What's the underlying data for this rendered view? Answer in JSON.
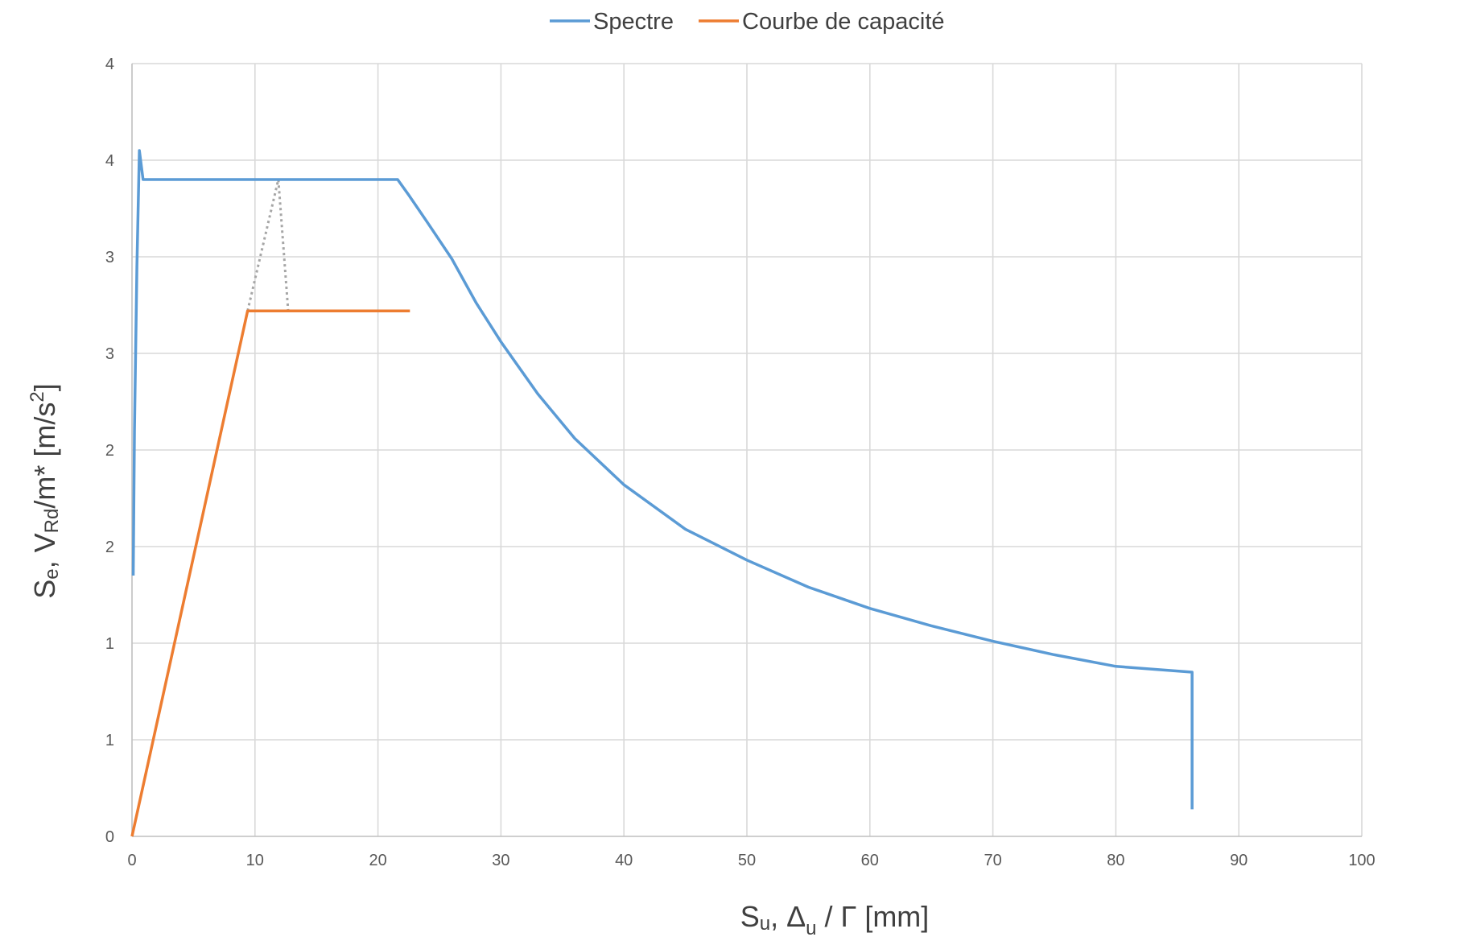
{
  "chart_data": {
    "type": "line",
    "title": "",
    "xlabel": {
      "main": "S",
      "sub": "u",
      "rest": ",  Δ",
      "sub2": "u",
      "tail": " / Γ  [mm]"
    },
    "ylabel": {
      "main": "S",
      "sub": "e",
      "mid": ",  V",
      "sub2": "Rd",
      "tail": "/m*   [m/s",
      "sup": "2",
      "end": "]"
    },
    "xlim": [
      0,
      100
    ],
    "ylim": [
      0,
      4
    ],
    "x_ticks": [
      "0",
      "10",
      "20",
      "30",
      "40",
      "50",
      "60",
      "70",
      "80",
      "90",
      "100"
    ],
    "y_tick_values": [
      0,
      0.5,
      1,
      1.5,
      2,
      2.5,
      3,
      3.5,
      4
    ],
    "y_tick_labels": [
      "0",
      "1",
      "1",
      "2",
      "2",
      "3",
      "3",
      "4",
      "4"
    ],
    "grid": true,
    "legend_position": "top-center",
    "series": [
      {
        "name": "Spectre",
        "color": "#5b9bd5",
        "x": [
          0.1,
          0.2,
          0.4,
          0.6,
          0.9,
          21.6,
          22.5,
          24,
          26,
          28,
          30,
          33,
          36,
          40,
          45,
          50,
          55,
          60,
          65,
          70,
          75,
          80,
          86.2,
          86.2
        ],
        "y": [
          1.35,
          2.1,
          2.95,
          3.55,
          3.4,
          3.4,
          3.32,
          3.18,
          2.99,
          2.76,
          2.56,
          2.29,
          2.06,
          1.82,
          1.59,
          1.43,
          1.29,
          1.18,
          1.09,
          1.01,
          0.94,
          0.88,
          0.85,
          0.14
        ]
      },
      {
        "name": "Courbe de capacité",
        "color": "#ed7d31",
        "x": [
          0,
          9.4,
          22.6
        ],
        "y": [
          0,
          2.72,
          2.72
        ]
      }
    ],
    "annotations": [
      {
        "type": "dotted-line",
        "color": "#a6a6a6",
        "x": [
          9.4,
          11.9,
          12.7
        ],
        "y": [
          2.72,
          3.4,
          2.72
        ]
      }
    ]
  }
}
